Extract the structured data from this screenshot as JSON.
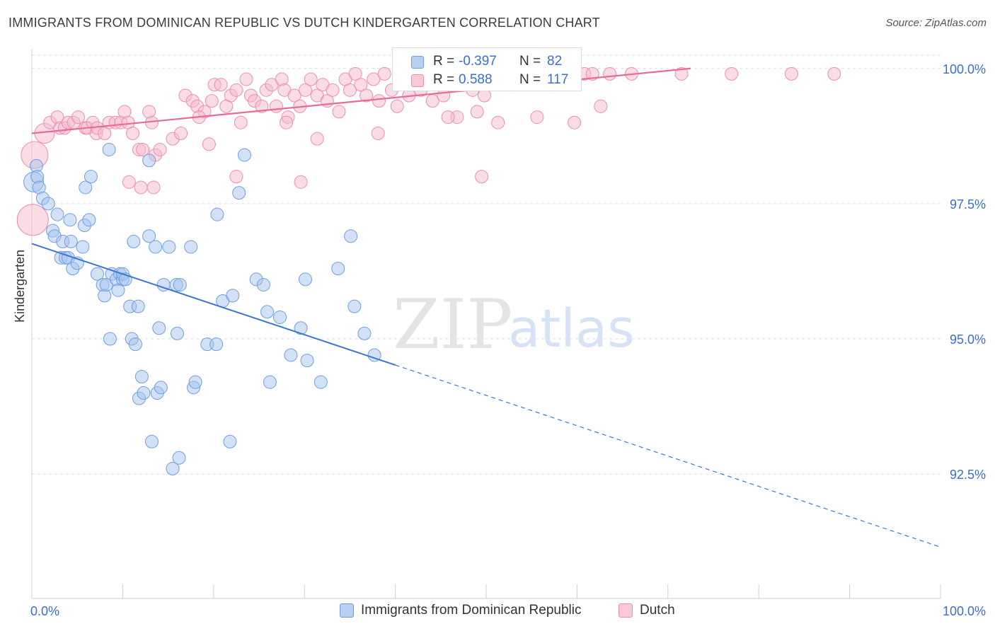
{
  "title": "IMMIGRANTS FROM DOMINICAN REPUBLIC VS DUTCH KINDERGARTEN CORRELATION CHART",
  "source": "Source: ZipAtlas.com",
  "watermark": {
    "zip": "ZIP",
    "atlas": "atlas"
  },
  "colors": {
    "blue_fill": "#a8c4ee",
    "blue_stroke": "#6f9ee0",
    "blue_line": "#3a78d4",
    "pink_fill": "#f6b9cc",
    "pink_stroke": "#ec8fad",
    "pink_line": "#e76c95",
    "grid": "#dddddd",
    "axis_text": "#3a6fd0"
  },
  "legend": {
    "series1": "Immigrants from Dominican Republic",
    "series2": "Dutch"
  },
  "stats": {
    "r_label": "R =",
    "n_label": "N =",
    "series1": {
      "r": "-0.397",
      "n": "82"
    },
    "series2": {
      "r": "0.588",
      "n": "117"
    }
  },
  "chart_data": {
    "type": "scatter",
    "title": "IMMIGRANTS FROM DOMINICAN REPUBLIC VS DUTCH KINDERGARTEN CORRELATION CHART",
    "xlabel": "",
    "ylabel": "Kindergarten",
    "xlim": [
      0,
      100
    ],
    "ylim": [
      90.2,
      100.35
    ],
    "x_tick_labels": [
      "0.0%",
      "100.0%"
    ],
    "y_ticks": [
      {
        "value": 100.0,
        "label": "100.0%"
      },
      {
        "value": 97.5,
        "label": "97.5%"
      },
      {
        "value": 95.0,
        "label": "95.0%"
      },
      {
        "value": 92.5,
        "label": "92.5%"
      }
    ],
    "grid": true,
    "legend_position": "bottom-center",
    "series": [
      {
        "name": "Immigrants from Dominican Republic",
        "color": "#a8c4ee",
        "trend": {
          "x": [
            0,
            100
          ],
          "y": [
            96.76,
            91.15
          ],
          "solid_until_x": 40
        },
        "points": [
          [
            0.2,
            97.9,
            14
          ],
          [
            0.5,
            98.2,
            9
          ],
          [
            0.6,
            98.0,
            9
          ],
          [
            0.8,
            97.8,
            9
          ],
          [
            1.2,
            97.6,
            9
          ],
          [
            1.8,
            97.5,
            9
          ],
          [
            2.3,
            97.0,
            9
          ],
          [
            2.5,
            96.9,
            9
          ],
          [
            2.8,
            97.3,
            9
          ],
          [
            3.2,
            96.5,
            9
          ],
          [
            3.4,
            96.8,
            9
          ],
          [
            3.7,
            96.5,
            9
          ],
          [
            4.0,
            96.5,
            9
          ],
          [
            4.2,
            97.2,
            9
          ],
          [
            4.3,
            96.8,
            9
          ],
          [
            4.5,
            96.3,
            9
          ],
          [
            5.0,
            96.4,
            9
          ],
          [
            5.6,
            96.7,
            9
          ],
          [
            5.8,
            97.1,
            9
          ],
          [
            5.9,
            97.8,
            9
          ],
          [
            6.3,
            97.2,
            9
          ],
          [
            6.5,
            98.0,
            9
          ],
          [
            7.2,
            96.2,
            9
          ],
          [
            7.8,
            96.0,
            9
          ],
          [
            8.0,
            95.8,
            9
          ],
          [
            8.2,
            96.0,
            9
          ],
          [
            8.5,
            98.5,
            9
          ],
          [
            8.6,
            95.0,
            9
          ],
          [
            8.8,
            96.2,
            9
          ],
          [
            9.3,
            96.1,
            9
          ],
          [
            9.5,
            95.9,
            9
          ],
          [
            9.7,
            96.2,
            9
          ],
          [
            10.0,
            96.1,
            9
          ],
          [
            10.0,
            96.2,
            9
          ],
          [
            10.3,
            96.1,
            9
          ],
          [
            10.8,
            95.6,
            9
          ],
          [
            11.0,
            95.0,
            9
          ],
          [
            11.2,
            96.8,
            9
          ],
          [
            11.4,
            94.9,
            9
          ],
          [
            11.7,
            95.6,
            9
          ],
          [
            11.8,
            93.9,
            9
          ],
          [
            12.1,
            94.3,
            9
          ],
          [
            12.3,
            94.0,
            9
          ],
          [
            12.9,
            98.3,
            9
          ],
          [
            12.9,
            96.9,
            9
          ],
          [
            13.2,
            93.1,
            9
          ],
          [
            13.6,
            96.7,
            9
          ],
          [
            13.8,
            94.0,
            9
          ],
          [
            14.0,
            95.2,
            9
          ],
          [
            14.2,
            94.1,
            9
          ],
          [
            14.5,
            96.0,
            9
          ],
          [
            15.1,
            96.7,
            9
          ],
          [
            15.5,
            92.6,
            9
          ],
          [
            15.9,
            96.0,
            9
          ],
          [
            16.0,
            95.1,
            9
          ],
          [
            16.2,
            92.8,
            9
          ],
          [
            16.3,
            96.0,
            9
          ],
          [
            17.5,
            96.7,
            9
          ],
          [
            17.8,
            94.1,
            9
          ],
          [
            18.0,
            94.2,
            9
          ],
          [
            19.3,
            94.9,
            9
          ],
          [
            20.3,
            94.9,
            9
          ],
          [
            20.4,
            97.3,
            9
          ],
          [
            21.0,
            95.7,
            9
          ],
          [
            21.8,
            93.1,
            9
          ],
          [
            22.1,
            95.8,
            9
          ],
          [
            22.8,
            97.7,
            9
          ],
          [
            23.4,
            98.4,
            9
          ],
          [
            24.7,
            96.1,
            9
          ],
          [
            25.5,
            96.0,
            9
          ],
          [
            25.9,
            95.5,
            9
          ],
          [
            26.2,
            94.2,
            9
          ],
          [
            27.3,
            95.4,
            9
          ],
          [
            28.5,
            94.7,
            9
          ],
          [
            29.6,
            95.2,
            9
          ],
          [
            30.1,
            96.1,
            9
          ],
          [
            30.3,
            94.6,
            9
          ],
          [
            31.8,
            94.2,
            9
          ],
          [
            33.7,
            96.3,
            9
          ],
          [
            35.1,
            96.9,
            9
          ],
          [
            35.5,
            95.6,
            9
          ],
          [
            36.6,
            95.1,
            9
          ],
          [
            37.7,
            94.7,
            9
          ]
        ]
      },
      {
        "name": "Dutch",
        "color": "#f6b9cc",
        "trend": {
          "x": [
            0,
            72.5
          ],
          "y": [
            98.8,
            100.0
          ]
        },
        "points": [
          [
            0.3,
            98.4,
            19
          ],
          [
            0.1,
            97.2,
            22
          ],
          [
            1.4,
            98.8,
            14
          ],
          [
            2.0,
            99.0,
            9
          ],
          [
            2.8,
            99.1,
            9
          ],
          [
            3.1,
            98.9,
            9
          ],
          [
            3.6,
            98.9,
            9
          ],
          [
            4.0,
            99.0,
            9
          ],
          [
            4.6,
            99.0,
            9
          ],
          [
            5.1,
            99.1,
            9
          ],
          [
            5.9,
            98.9,
            9
          ],
          [
            6.1,
            98.9,
            9
          ],
          [
            6.7,
            99.0,
            9
          ],
          [
            7.1,
            98.8,
            9
          ],
          [
            7.2,
            98.9,
            9
          ],
          [
            8.0,
            98.8,
            9
          ],
          [
            8.5,
            99.0,
            9
          ],
          [
            9.2,
            99.0,
            9
          ],
          [
            9.8,
            99.0,
            9
          ],
          [
            10.2,
            99.2,
            9
          ],
          [
            10.6,
            99.0,
            9
          ],
          [
            11.1,
            98.8,
            9
          ],
          [
            11.8,
            98.5,
            9
          ],
          [
            12.2,
            98.5,
            9
          ],
          [
            12.9,
            99.2,
            9
          ],
          [
            13.2,
            99.0,
            9
          ],
          [
            13.6,
            98.4,
            9
          ],
          [
            14.1,
            98.5,
            9
          ],
          [
            15.5,
            98.7,
            9
          ],
          [
            16.4,
            98.8,
            9
          ],
          [
            16.9,
            99.5,
            9
          ],
          [
            17.7,
            99.4,
            9
          ],
          [
            18.2,
            99.3,
            9
          ],
          [
            19.0,
            99.2,
            9
          ],
          [
            19.8,
            99.4,
            9
          ],
          [
            20.1,
            99.7,
            9
          ],
          [
            20.8,
            99.7,
            9
          ],
          [
            21.4,
            99.3,
            9
          ],
          [
            21.9,
            99.5,
            9
          ],
          [
            22.5,
            99.6,
            9
          ],
          [
            23.0,
            99.0,
            9
          ],
          [
            23.6,
            99.8,
            9
          ],
          [
            24.1,
            99.5,
            9
          ],
          [
            24.5,
            99.4,
            9
          ],
          [
            25.3,
            99.3,
            9
          ],
          [
            25.8,
            99.6,
            9
          ],
          [
            26.4,
            99.7,
            9
          ],
          [
            26.9,
            99.3,
            9
          ],
          [
            27.5,
            99.8,
            9
          ],
          [
            27.8,
            99.6,
            9
          ],
          [
            28.2,
            99.1,
            9
          ],
          [
            28.9,
            99.5,
            9
          ],
          [
            29.5,
            99.3,
            9
          ],
          [
            30.1,
            99.6,
            9
          ],
          [
            30.7,
            99.8,
            9
          ],
          [
            31.4,
            99.5,
            9
          ],
          [
            32.0,
            99.7,
            9
          ],
          [
            32.5,
            99.4,
            9
          ],
          [
            33.1,
            99.6,
            9
          ],
          [
            33.8,
            99.2,
            9
          ],
          [
            34.5,
            99.8,
            9
          ],
          [
            35.0,
            99.6,
            9
          ],
          [
            35.6,
            99.9,
            9
          ],
          [
            36.2,
            99.7,
            9
          ],
          [
            36.8,
            99.5,
            9
          ],
          [
            37.6,
            99.8,
            9
          ],
          [
            38.2,
            99.4,
            9
          ],
          [
            38.8,
            99.9,
            9
          ],
          [
            39.6,
            99.6,
            9
          ],
          [
            40.2,
            99.3,
            9
          ],
          [
            40.9,
            99.8,
            9
          ],
          [
            41.5,
            99.5,
            9
          ],
          [
            42.0,
            99.9,
            9
          ],
          [
            42.8,
            99.6,
            9
          ],
          [
            43.5,
            99.7,
            9
          ],
          [
            44.1,
            99.4,
            9
          ],
          [
            44.6,
            99.9,
            9
          ],
          [
            45.3,
            99.5,
            9
          ],
          [
            45.9,
            99.7,
            9
          ],
          [
            46.8,
            99.1,
            9
          ],
          [
            47.2,
            99.8,
            9
          ],
          [
            47.7,
            99.9,
            9
          ],
          [
            48.5,
            99.6,
            9
          ],
          [
            49.1,
            99.9,
            9
          ],
          [
            49.8,
            99.5,
            9
          ],
          [
            50.4,
            99.8,
            9
          ],
          [
            51.3,
            99.0,
            9
          ],
          [
            52.2,
            99.9,
            9
          ],
          [
            53.0,
            99.7,
            9
          ],
          [
            53.9,
            99.9,
            9
          ],
          [
            54.7,
            99.8,
            9
          ],
          [
            55.6,
            99.1,
            9
          ],
          [
            56.2,
            99.9,
            9
          ],
          [
            57.1,
            99.7,
            9
          ],
          [
            57.9,
            99.9,
            9
          ],
          [
            58.8,
            99.9,
            9
          ],
          [
            59.7,
            99.0,
            9
          ],
          [
            60.8,
            99.9,
            9
          ],
          [
            61.7,
            99.9,
            9
          ],
          [
            62.6,
            99.3,
            9
          ],
          [
            63.6,
            99.9,
            9
          ],
          [
            66.0,
            99.9,
            9
          ],
          [
            71.5,
            99.9,
            9
          ],
          [
            77.0,
            99.9,
            9
          ],
          [
            83.6,
            99.9,
            9
          ],
          [
            88.3,
            99.9,
            9
          ],
          [
            49.5,
            98.0,
            9
          ],
          [
            45.8,
            99.1,
            9
          ],
          [
            49.0,
            99.2,
            9
          ],
          [
            38.1,
            98.8,
            9
          ],
          [
            31.4,
            98.7,
            9
          ],
          [
            29.6,
            97.9,
            9
          ],
          [
            28.0,
            99.0,
            9
          ],
          [
            22.5,
            98.0,
            9
          ],
          [
            19.5,
            98.6,
            9
          ],
          [
            18.4,
            99.1,
            9
          ],
          [
            13.4,
            97.8,
            9
          ],
          [
            10.7,
            97.9,
            9
          ],
          [
            12.0,
            97.8,
            9
          ]
        ]
      }
    ]
  }
}
